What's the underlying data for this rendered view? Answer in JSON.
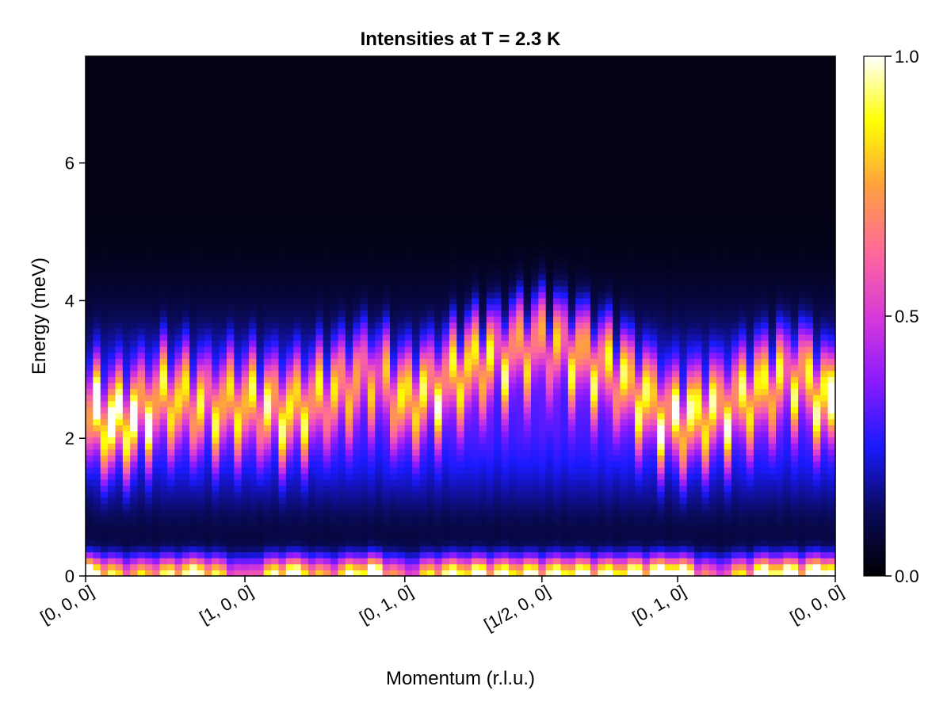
{
  "chart_data": {
    "type": "heatmap",
    "title": "Intensities at T = 2.3 K",
    "xlabel": "Momentum (r.l.u.)",
    "ylabel": "Energy (meV)",
    "ylim": [
      0,
      7.55
    ],
    "yticks": [
      0,
      2,
      4,
      6
    ],
    "xtick_labels": [
      "[0, 0, 0]",
      "[1, 0, 0]",
      "[0, 1, 0]",
      "[1/2, 0, 0]",
      "[0, 1, 0]",
      "[0, 0, 0]"
    ],
    "xtick_positions": [
      0,
      0.2125,
      0.4258,
      0.6087,
      0.7897,
      1.0
    ],
    "colorbar": {
      "range": [
        0.0,
        1.0
      ],
      "ticks": [
        0.0,
        0.5,
        1.0
      ],
      "tick_labels": [
        "0.0",
        "0.5",
        "1.0"
      ]
    },
    "colormap": [
      "#000004",
      "#0a0a5a",
      "#1a1aff",
      "#8c1aff",
      "#d83ad8",
      "#ff6a9a",
      "#ffa040",
      "#ffff00",
      "#ffffff"
    ],
    "grid": false,
    "legend": "none",
    "energy_bins": 86,
    "momentum_columns": 101,
    "band_profile": {
      "momentum": [
        0,
        0.05,
        0.1,
        0.15,
        0.2125,
        0.27,
        0.32,
        0.3836,
        0.4258,
        0.47,
        0.52,
        0.57,
        0.6087,
        0.65,
        0.7,
        0.7897,
        0.84,
        0.9,
        0.95,
        1.0
      ],
      "upper_band_center_meV": [
        2.3,
        2.2,
        2.6,
        2.5,
        2.5,
        2.4,
        2.6,
        3.0,
        2.5,
        2.8,
        3.1,
        3.3,
        3.4,
        3.3,
        3.0,
        2.2,
        2.4,
        2.7,
        3.0,
        2.4
      ],
      "upper_band_intensity": [
        1.0,
        0.95,
        0.8,
        0.7,
        0.75,
        0.8,
        0.7,
        0.6,
        0.75,
        0.8,
        0.85,
        0.8,
        0.75,
        0.8,
        0.8,
        0.85,
        0.8,
        0.8,
        0.75,
        1.0
      ],
      "low_energy_intensity": [
        1.0,
        0.6,
        0.7,
        0.9,
        0.4,
        0.95,
        0.55,
        1.0,
        0.4,
        0.8,
        0.85,
        0.8,
        0.8,
        0.85,
        0.8,
        1.0,
        0.4,
        0.9,
        0.9,
        1.0
      ]
    }
  }
}
